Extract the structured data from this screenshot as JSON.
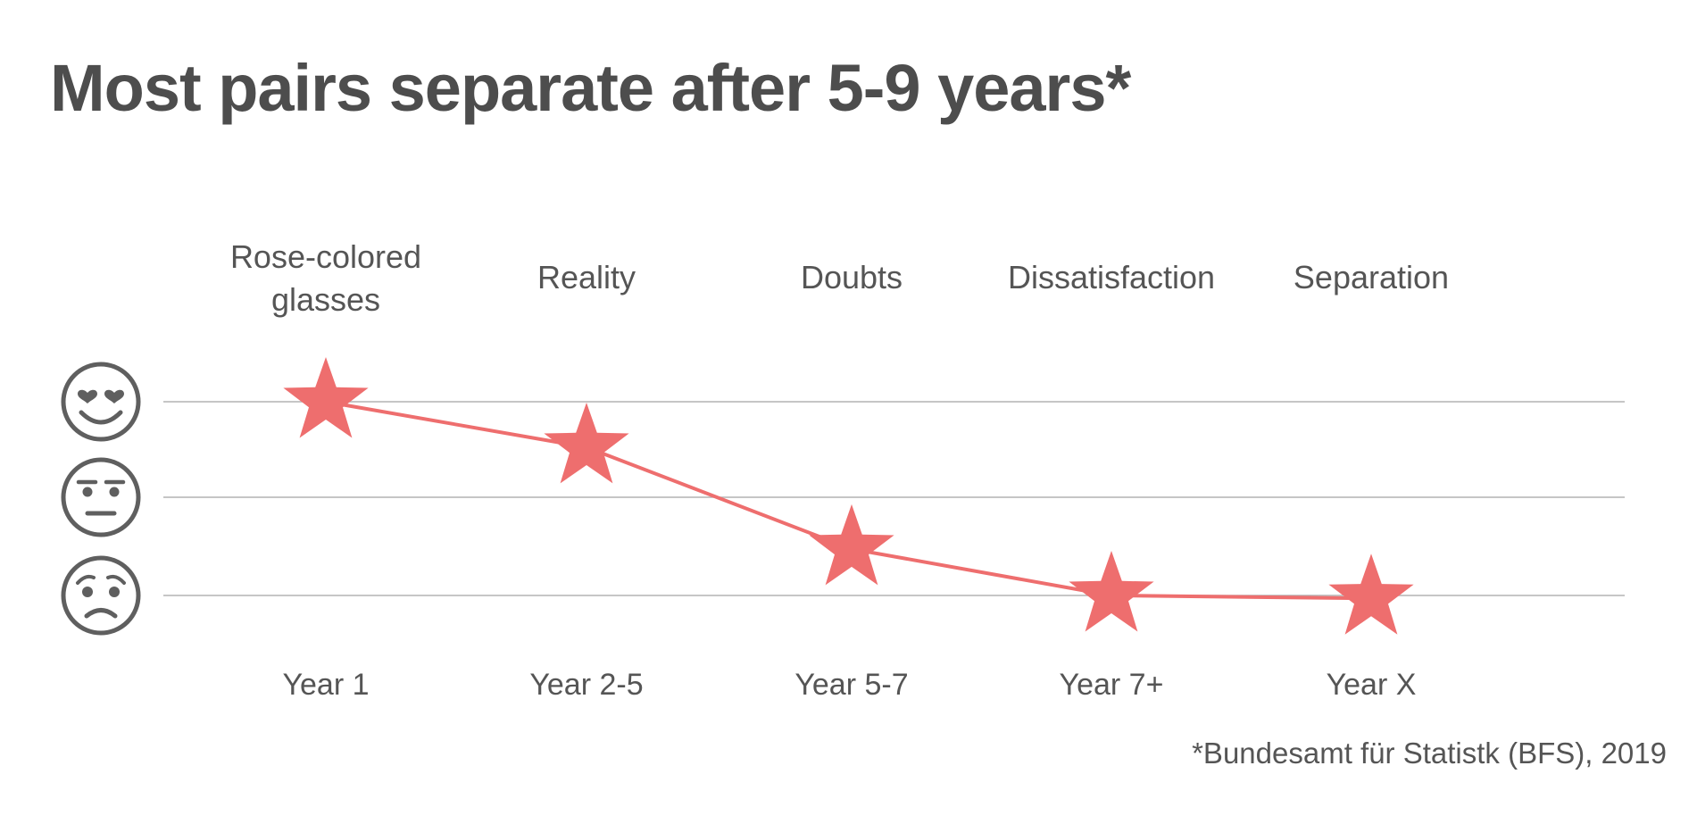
{
  "title": "Most pairs separate after 5-9 years*",
  "source": "*Bundesamt für Statistk (BFS), 2019",
  "chart_data": {
    "type": "line",
    "marker": "star",
    "categories": [
      "Year 1",
      "Year 2-5",
      "Year 5-7",
      "Year 7+",
      "Year X"
    ],
    "phase_labels": [
      [
        "Rose-colored",
        "glasses"
      ],
      [
        "Reality"
      ],
      [
        "Doubts"
      ],
      [
        "Dissatisfaction"
      ],
      [
        "Separation"
      ]
    ],
    "levels": [
      {
        "value": 3,
        "icon": "heart-eyes-face-icon"
      },
      {
        "value": 2,
        "icon": "neutral-face-icon"
      },
      {
        "value": 1,
        "icon": "worried-face-icon"
      }
    ],
    "values": [
      3.0,
      2.53,
      1.48,
      1.0,
      0.97
    ],
    "ylim": [
      1,
      3
    ],
    "grid": true,
    "colors": {
      "line": "#ee6e6e",
      "grid": "#b3b3b3",
      "icon": "#5f5f5f"
    }
  }
}
